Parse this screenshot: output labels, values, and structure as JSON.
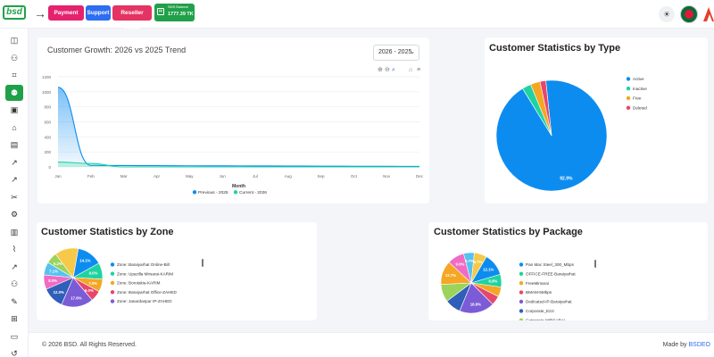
{
  "header": {
    "logo": "bsd",
    "payment": "Payment",
    "support": "Support",
    "reseller": "Reseller Panel",
    "sms_label": "SMS Balance",
    "sms_value": "1777.39 TK"
  },
  "sidebar": {
    "icons": [
      "dashboard-icon",
      "users-icon",
      "network-icon",
      "customers-icon",
      "billing-icon",
      "olt-icon",
      "package-icon",
      "report-icon",
      "chart-icon",
      "tools-icon",
      "settings-icon",
      "document-icon",
      "analytics-icon",
      "stats-icon",
      "team-icon",
      "support-icon",
      "sitemap-icon",
      "message-icon",
      "history-icon"
    ]
  },
  "growth": {
    "title": "Customer Growth: 2026 vs 2025 Trend",
    "select": "2026 - 2025",
    "xlabel": "Month",
    "legend_prev": "Previous - 2025",
    "legend_curr": "Current - 2026"
  },
  "type": {
    "title": "Customer Statistics by Type"
  },
  "zone": {
    "title": "Customer Statistics by Zone"
  },
  "pkg": {
    "title": "Customer Statistics by Package"
  },
  "footer": {
    "copy": "© 2026 BSD. All Rights Reserved.",
    "made_prefix": "Made by",
    "made_brand": "BSDEO"
  },
  "colors": {
    "green": "#21a04a",
    "blue": "#0d8cf0",
    "teal": "#1fd3a1",
    "orange": "#f5a623",
    "red": "#e8466a"
  },
  "chart_data": [
    {
      "type": "area",
      "title": "Customer Growth: 2026 vs 2025 Trend",
      "xlabel": "Month",
      "ylabel": "",
      "categories": [
        "Jan",
        "Feb",
        "Mar",
        "Apr",
        "May",
        "Jun",
        "Jul",
        "Aug",
        "Sep",
        "Oct",
        "Nov",
        "Dec"
      ],
      "ylim": [
        0,
        1200
      ],
      "yticks": [
        0,
        200,
        400,
        600,
        800,
        1000,
        1200
      ],
      "series": [
        {
          "name": "Previous - 2025",
          "color": "#0d8cf0",
          "values": [
            1060,
            20,
            18,
            17,
            15,
            14,
            13,
            12,
            10,
            9,
            8,
            7
          ]
        },
        {
          "name": "Current - 2026",
          "color": "#1fd3a1",
          "values": [
            65,
            45,
            0,
            0,
            0,
            0,
            0,
            0,
            0,
            0,
            0,
            0
          ]
        }
      ]
    },
    {
      "type": "pie",
      "title": "Customer Statistics by Type",
      "slices": [
        {
          "label": "Active",
          "value": 92.9,
          "color": "#0d8cf0",
          "text": "92.9%"
        },
        {
          "label": "Inactive",
          "value": 2.6,
          "color": "#1fd3a1"
        },
        {
          "label": "Free",
          "value": 2.8,
          "color": "#f5a623"
        },
        {
          "label": "Deleted",
          "value": 1.7,
          "color": "#e8466a"
        }
      ]
    },
    {
      "type": "pie",
      "title": "Customer Statistics by Zone",
      "slices": [
        {
          "label": "Zone: Baraiyarhat Online-Bill",
          "value": 14.1,
          "color": "#0d8cf0",
          "text": "14.1%"
        },
        {
          "label": "Zone: Upazilla Mirsarai-KARIM",
          "value": 9,
          "color": "#1fd3a1",
          "text": "9.0%"
        },
        {
          "label": "Zone: Borotakia-KARIM",
          "value": 7,
          "color": "#f5a623",
          "text": "7.0%"
        },
        {
          "label": "Zone: Baraiyarhat Office-ZAHED",
          "value": 6,
          "color": "#e8466a",
          "text": "6.0%"
        },
        {
          "label": "Zone: Janardanpur IP-ZAHED",
          "value": 17.6,
          "color": "#7b5cd6",
          "text": "17.6%"
        },
        {
          "label": "",
          "value": 12,
          "color": "#2f5fb8",
          "text": "12.0%"
        },
        {
          "label": "",
          "value": 8,
          "color": "#f06bc3",
          "text": "8.0%"
        },
        {
          "label": "",
          "value": 7.1,
          "color": "#56c2f0",
          "text": "7.1%"
        },
        {
          "label": "",
          "value": 6.2,
          "color": "#9bd35b",
          "text": "6.2%"
        },
        {
          "label": "",
          "value": 13,
          "color": "#f7c948"
        },
        {
          "label": "",
          "value": 0,
          "color": "#ffffff"
        }
      ]
    },
    {
      "type": "pie",
      "title": "Customer Statistics by Package",
      "slices": [
        {
          "label": "Pan Mac Steel_300_Mbps",
          "value": 12.1,
          "color": "#0d8cf0",
          "text": "12.1%"
        },
        {
          "label": "OFFICE-FREE-Baraiyarhat",
          "value": 6.8,
          "color": "#1fd3a1",
          "text": "6.8%"
        },
        {
          "label": "FreeMirsarai",
          "value": 5.2,
          "color": "#f5a623"
        },
        {
          "label": "BMAM-5Mbps",
          "value": 5,
          "color": "#e8466a"
        },
        {
          "label": "Dedicated-IP-Baraiyarhat",
          "value": 18.8,
          "color": "#7b5cd6",
          "text": "18.8%"
        },
        {
          "label": "Corporate_Ezzi",
          "value": 8.5,
          "color": "#2f5fb8"
        },
        {
          "label": "Corporate-MIRSARAI",
          "value": 9.5,
          "color": "#9bd35b"
        },
        {
          "label": "",
          "value": 12.7,
          "color": "#f5a623",
          "text": "12.7%"
        },
        {
          "label": "",
          "value": 9,
          "color": "#f06bc3",
          "text": "9.0%"
        },
        {
          "label": "",
          "value": 5.7,
          "color": "#56c2f0",
          "text": "5.7%"
        },
        {
          "label": "",
          "value": 6.7,
          "color": "#f7c948",
          "text": "6.7%"
        }
      ]
    }
  ]
}
